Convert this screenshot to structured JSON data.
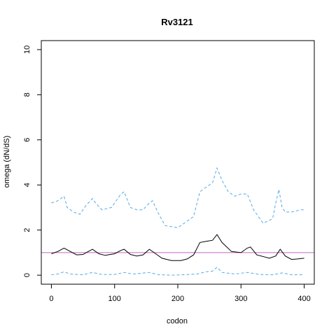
{
  "chart_data": {
    "type": "line",
    "title": "Rv3121",
    "xlabel": "codon",
    "ylabel": "omega (dN/dS)",
    "xlim": [
      -16,
      416
    ],
    "ylim": [
      -0.4,
      10.4
    ],
    "xticks": [
      0,
      100,
      200,
      300,
      400
    ],
    "yticks": [
      0,
      2,
      4,
      6,
      8,
      10
    ],
    "grid": false,
    "reference_line": {
      "y": 1.0,
      "color": "#c266c2"
    },
    "series": [
      {
        "role": "upper",
        "style": "dashed",
        "color": "#56a9e8",
        "x": [
          0,
          10,
          20,
          25,
          35,
          45,
          55,
          65,
          70,
          80,
          95,
          110,
          115,
          125,
          135,
          145,
          155,
          160,
          170,
          180,
          200,
          210,
          225,
          235,
          245,
          255,
          262,
          270,
          280,
          290,
          300,
          310,
          320,
          335,
          350,
          355,
          360,
          365,
          370,
          380,
          395,
          400
        ],
        "values": [
          3.2,
          3.3,
          3.5,
          3.0,
          2.8,
          2.7,
          3.1,
          3.4,
          3.2,
          2.9,
          3.0,
          3.6,
          3.7,
          3.0,
          2.9,
          2.9,
          3.2,
          3.3,
          2.7,
          2.2,
          2.1,
          2.3,
          2.6,
          3.7,
          3.9,
          4.1,
          4.75,
          4.2,
          3.7,
          3.5,
          3.6,
          3.6,
          2.9,
          2.3,
          2.5,
          3.2,
          3.8,
          3.0,
          2.8,
          2.8,
          2.9,
          2.9
        ]
      },
      {
        "role": "estimate",
        "style": "solid",
        "color": "#000000",
        "x": [
          0,
          10,
          20,
          30,
          40,
          50,
          55,
          65,
          75,
          85,
          100,
          110,
          115,
          125,
          135,
          145,
          155,
          165,
          175,
          190,
          205,
          215,
          225,
          235,
          245,
          255,
          262,
          270,
          285,
          300,
          310,
          315,
          325,
          345,
          355,
          362,
          370,
          380,
          390,
          400
        ],
        "values": [
          0.95,
          1.05,
          1.2,
          1.05,
          0.9,
          0.92,
          1.0,
          1.15,
          0.95,
          0.88,
          0.95,
          1.1,
          1.15,
          0.92,
          0.85,
          0.9,
          1.15,
          0.95,
          0.75,
          0.65,
          0.65,
          0.72,
          0.9,
          1.45,
          1.5,
          1.55,
          1.8,
          1.45,
          1.05,
          1.0,
          1.2,
          1.25,
          0.9,
          0.75,
          0.85,
          1.15,
          0.85,
          0.7,
          0.72,
          0.75
        ]
      },
      {
        "role": "lower",
        "style": "dashed",
        "color": "#56a9e8",
        "x": [
          0,
          10,
          20,
          30,
          50,
          65,
          80,
          100,
          115,
          130,
          155,
          170,
          190,
          210,
          230,
          245,
          255,
          262,
          270,
          290,
          310,
          330,
          350,
          365,
          380,
          400
        ],
        "values": [
          0.02,
          0.05,
          0.15,
          0.05,
          0.02,
          0.12,
          0.03,
          0.03,
          0.12,
          0.05,
          0.12,
          0.02,
          0.0,
          0.02,
          0.05,
          0.15,
          0.18,
          0.35,
          0.12,
          0.05,
          0.12,
          0.03,
          0.02,
          0.1,
          0.02,
          0.02
        ]
      }
    ]
  }
}
